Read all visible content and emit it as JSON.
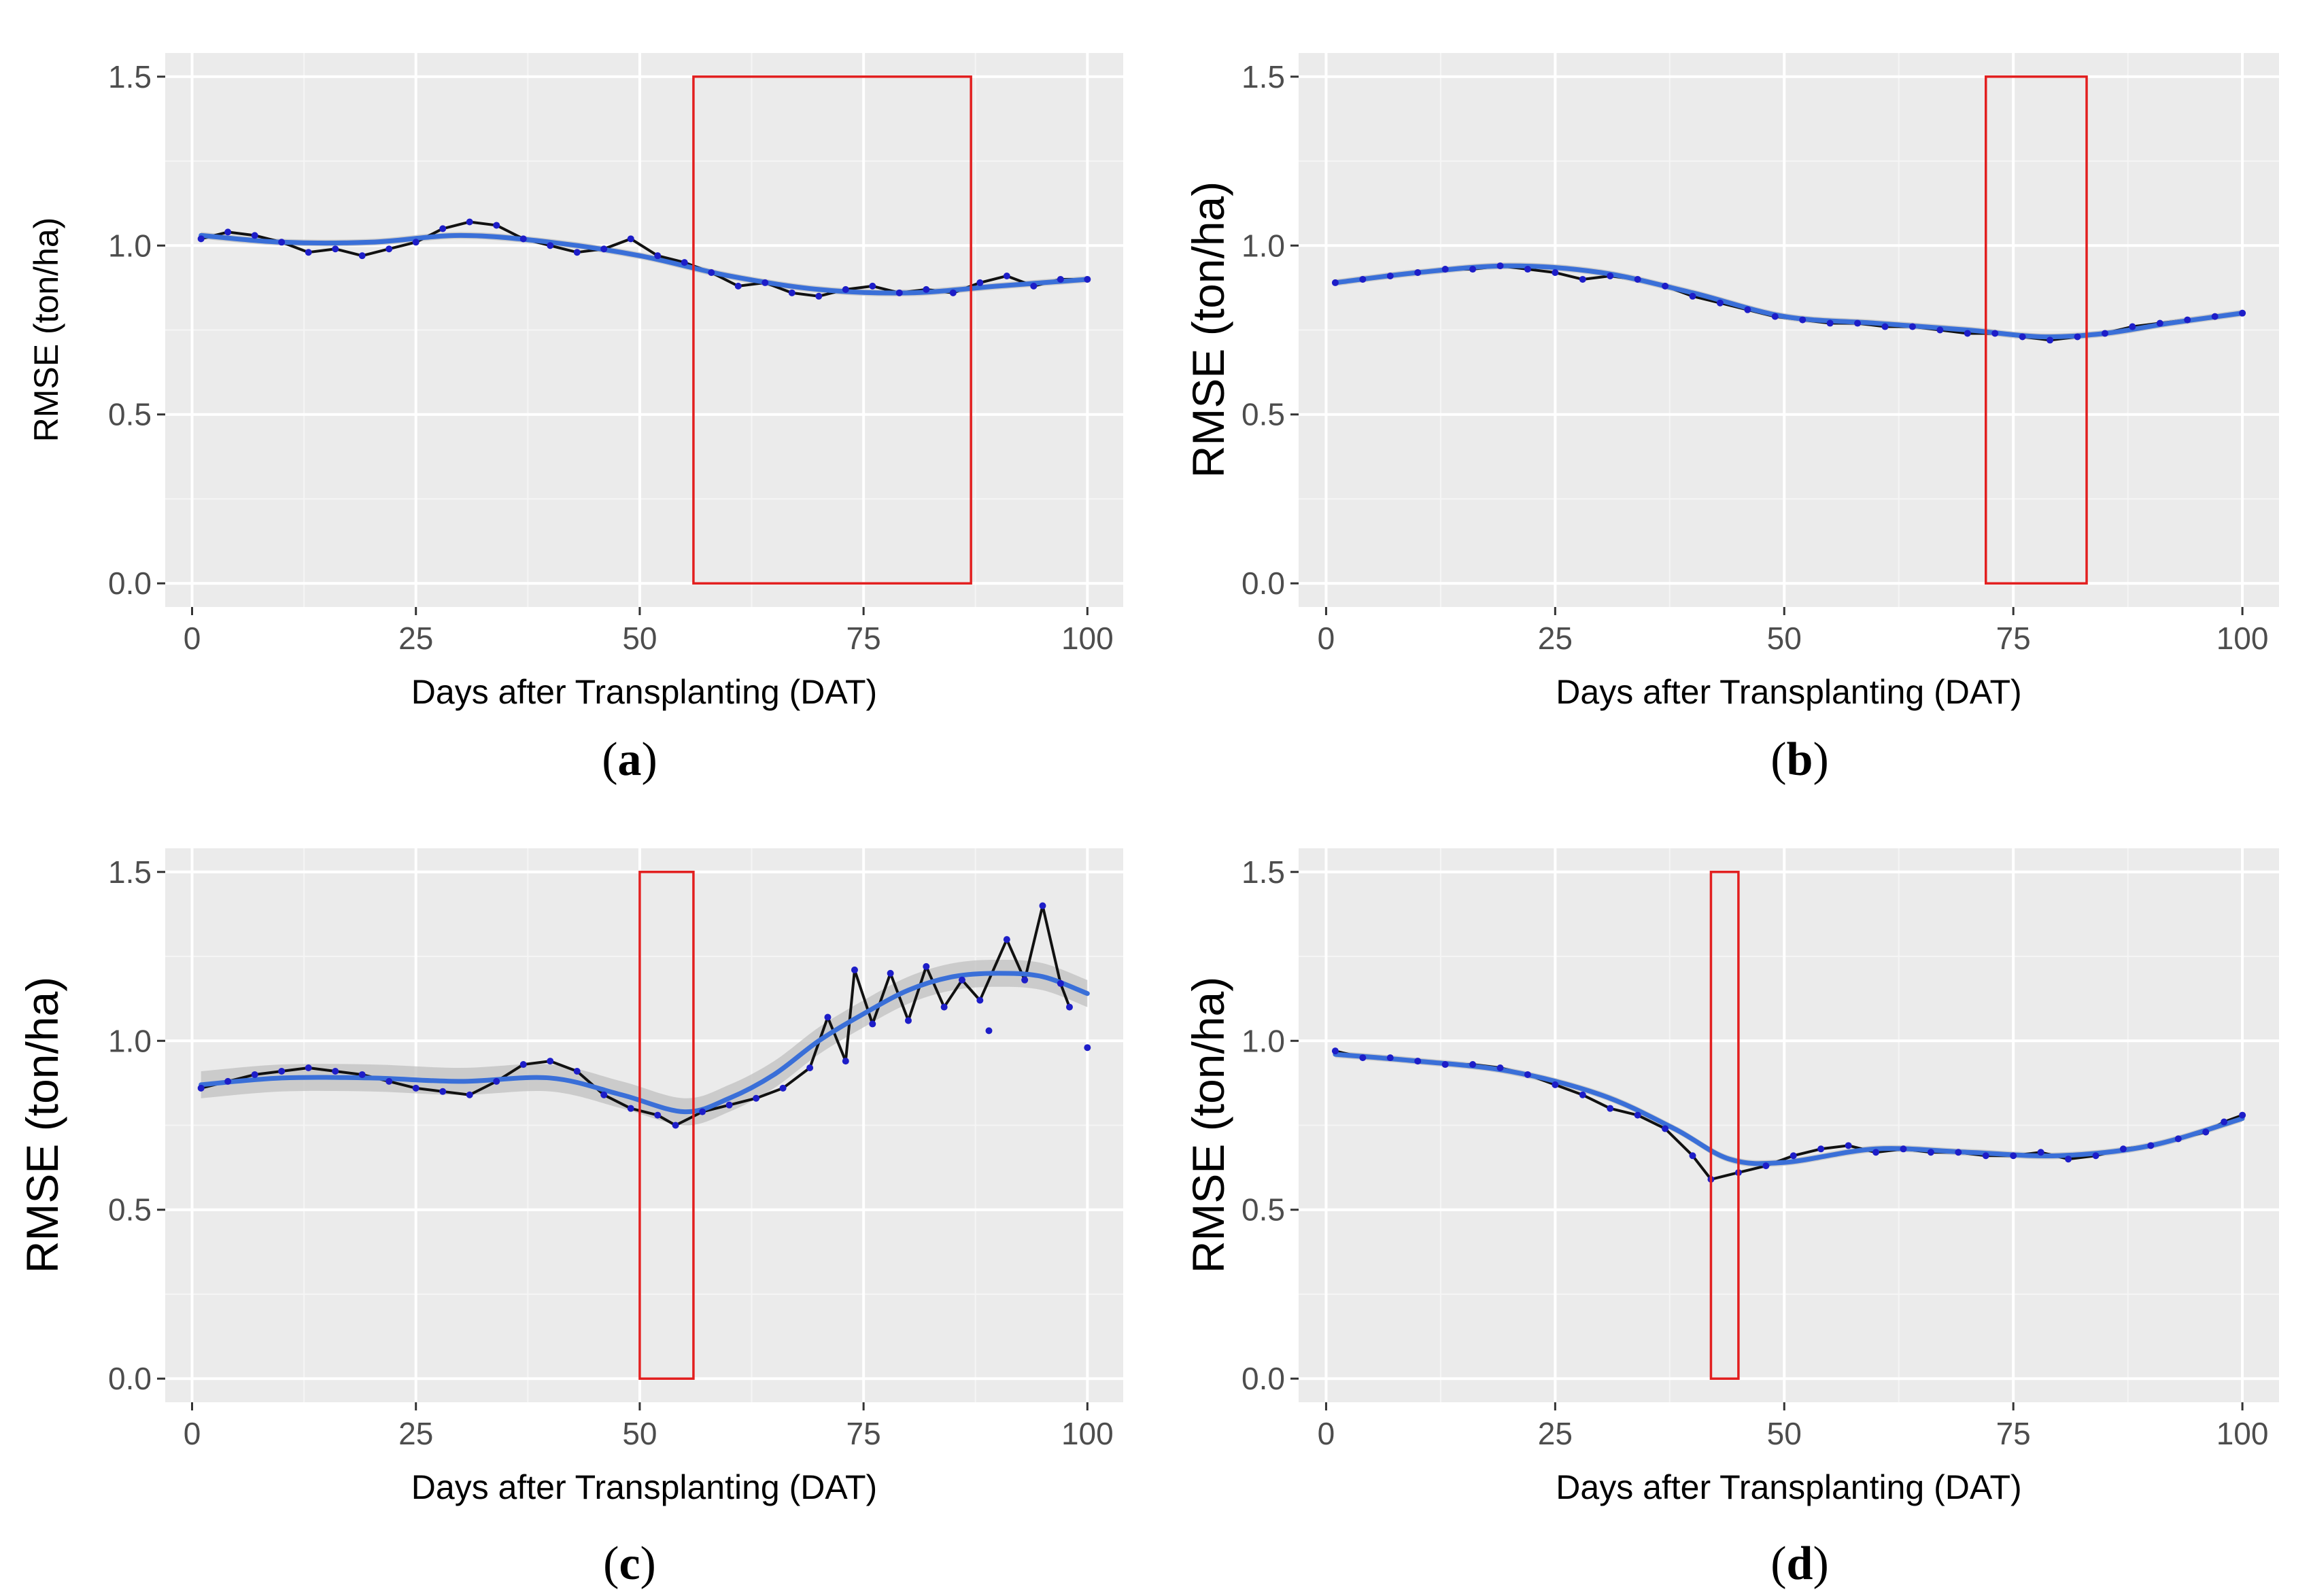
{
  "chart_data": [
    {
      "id": "a",
      "type": "line",
      "caption_letter": "a",
      "xlabel": "Days after Transplanting (DAT)",
      "ylabel": "RMSE (ton/ha)",
      "ylabel_size": "small",
      "xlim": [
        -3,
        104
      ],
      "ylim": [
        -0.07,
        1.57
      ],
      "xticks": [
        "0",
        "25",
        "50",
        "75",
        "100"
      ],
      "yticks": [
        "0.0",
        "0.5",
        "1.0",
        "1.5"
      ],
      "highlight_box": {
        "x": [
          56,
          87
        ],
        "y": [
          0,
          1.5
        ]
      },
      "points": [
        [
          1,
          1.02
        ],
        [
          4,
          1.04
        ],
        [
          7,
          1.03
        ],
        [
          10,
          1.01
        ],
        [
          13,
          0.98
        ],
        [
          16,
          0.99
        ],
        [
          19,
          0.97
        ],
        [
          22,
          0.99
        ],
        [
          25,
          1.01
        ],
        [
          28,
          1.05
        ],
        [
          31,
          1.07
        ],
        [
          34,
          1.06
        ],
        [
          37,
          1.02
        ],
        [
          40,
          1.0
        ],
        [
          43,
          0.98
        ],
        [
          46,
          0.99
        ],
        [
          49,
          1.02
        ],
        [
          52,
          0.97
        ],
        [
          55,
          0.95
        ],
        [
          58,
          0.92
        ],
        [
          61,
          0.88
        ],
        [
          64,
          0.89
        ],
        [
          67,
          0.86
        ],
        [
          70,
          0.85
        ],
        [
          73,
          0.87
        ],
        [
          76,
          0.88
        ],
        [
          79,
          0.86
        ],
        [
          82,
          0.87
        ],
        [
          85,
          0.86
        ],
        [
          88,
          0.89
        ],
        [
          91,
          0.91
        ],
        [
          94,
          0.88
        ],
        [
          97,
          0.9
        ],
        [
          100,
          0.9
        ]
      ],
      "smooth": [
        [
          1,
          1.03
        ],
        [
          10,
          1.01
        ],
        [
          20,
          1.01
        ],
        [
          30,
          1.03
        ],
        [
          40,
          1.01
        ],
        [
          50,
          0.97
        ],
        [
          60,
          0.91
        ],
        [
          70,
          0.87
        ],
        [
          80,
          0.86
        ],
        [
          90,
          0.88
        ],
        [
          100,
          0.9
        ]
      ],
      "band": 0.01
    },
    {
      "id": "b",
      "type": "line",
      "caption_letter": "b",
      "xlabel": "Days after Transplanting (DAT)",
      "ylabel": "RMSE (ton/ha)",
      "ylabel_size": "big",
      "xlim": [
        -3,
        104
      ],
      "ylim": [
        -0.07,
        1.57
      ],
      "xticks": [
        "0",
        "25",
        "50",
        "75",
        "100"
      ],
      "yticks": [
        "0.0",
        "0.5",
        "1.0",
        "1.5"
      ],
      "highlight_box": {
        "x": [
          72,
          83
        ],
        "y": [
          0,
          1.5
        ]
      },
      "points": [
        [
          1,
          0.89
        ],
        [
          4,
          0.9
        ],
        [
          7,
          0.91
        ],
        [
          10,
          0.92
        ],
        [
          13,
          0.93
        ],
        [
          16,
          0.93
        ],
        [
          19,
          0.94
        ],
        [
          22,
          0.93
        ],
        [
          25,
          0.92
        ],
        [
          28,
          0.9
        ],
        [
          31,
          0.91
        ],
        [
          34,
          0.9
        ],
        [
          37,
          0.88
        ],
        [
          40,
          0.85
        ],
        [
          43,
          0.83
        ],
        [
          46,
          0.81
        ],
        [
          49,
          0.79
        ],
        [
          52,
          0.78
        ],
        [
          55,
          0.77
        ],
        [
          58,
          0.77
        ],
        [
          61,
          0.76
        ],
        [
          64,
          0.76
        ],
        [
          67,
          0.75
        ],
        [
          70,
          0.74
        ],
        [
          73,
          0.74
        ],
        [
          76,
          0.73
        ],
        [
          79,
          0.72
        ],
        [
          82,
          0.73
        ],
        [
          85,
          0.74
        ],
        [
          88,
          0.76
        ],
        [
          91,
          0.77
        ],
        [
          94,
          0.78
        ],
        [
          97,
          0.79
        ],
        [
          100,
          0.8
        ]
      ],
      "smooth": [
        [
          1,
          0.89
        ],
        [
          10,
          0.92
        ],
        [
          20,
          0.94
        ],
        [
          30,
          0.92
        ],
        [
          40,
          0.86
        ],
        [
          50,
          0.79
        ],
        [
          60,
          0.77
        ],
        [
          70,
          0.75
        ],
        [
          78,
          0.73
        ],
        [
          85,
          0.74
        ],
        [
          92,
          0.77
        ],
        [
          100,
          0.8
        ]
      ],
      "band": 0.01
    },
    {
      "id": "c",
      "type": "line",
      "caption_letter": "c",
      "xlabel": "Days after Transplanting (DAT)",
      "ylabel": "RMSE (ton/ha)",
      "ylabel_size": "big",
      "xlim": [
        -3,
        104
      ],
      "ylim": [
        -0.07,
        1.57
      ],
      "xticks": [
        "0",
        "25",
        "50",
        "75",
        "100"
      ],
      "yticks": [
        "0.0",
        "0.5",
        "1.0",
        "1.5"
      ],
      "highlight_box": {
        "x": [
          50,
          56
        ],
        "y": [
          0,
          1.5
        ]
      },
      "points": [
        [
          1,
          0.86
        ],
        [
          4,
          0.88
        ],
        [
          7,
          0.9
        ],
        [
          10,
          0.91
        ],
        [
          13,
          0.92
        ],
        [
          16,
          0.91
        ],
        [
          19,
          0.9
        ],
        [
          22,
          0.88
        ],
        [
          25,
          0.86
        ],
        [
          28,
          0.85
        ],
        [
          31,
          0.84
        ],
        [
          34,
          0.88
        ],
        [
          37,
          0.93
        ],
        [
          40,
          0.94
        ],
        [
          43,
          0.91
        ],
        [
          46,
          0.84
        ],
        [
          49,
          0.8
        ],
        [
          52,
          0.78
        ],
        [
          54,
          0.75
        ],
        [
          57,
          0.79
        ],
        [
          60,
          0.81
        ],
        [
          63,
          0.83
        ],
        [
          66,
          0.86
        ],
        [
          69,
          0.92
        ],
        [
          71,
          1.07
        ],
        [
          73,
          0.94
        ],
        [
          74,
          1.21
        ],
        [
          76,
          1.05
        ],
        [
          78,
          1.2
        ],
        [
          80,
          1.06
        ],
        [
          82,
          1.22
        ],
        [
          84,
          1.1
        ],
        [
          86,
          1.18
        ],
        [
          88,
          1.12
        ],
        [
          91,
          1.3
        ],
        [
          93,
          1.18
        ],
        [
          95,
          1.4
        ],
        [
          97,
          1.17
        ],
        [
          98,
          1.1
        ]
      ],
      "outliers": [
        [
          89,
          1.03
        ],
        [
          100,
          0.98
        ]
      ],
      "smooth": [
        [
          1,
          0.87
        ],
        [
          10,
          0.89
        ],
        [
          20,
          0.89
        ],
        [
          30,
          0.88
        ],
        [
          40,
          0.89
        ],
        [
          48,
          0.84
        ],
        [
          55,
          0.79
        ],
        [
          60,
          0.83
        ],
        [
          65,
          0.9
        ],
        [
          70,
          1.0
        ],
        [
          75,
          1.08
        ],
        [
          80,
          1.15
        ],
        [
          85,
          1.19
        ],
        [
          90,
          1.2
        ],
        [
          95,
          1.19
        ],
        [
          100,
          1.14
        ]
      ],
      "band": 0.04
    },
    {
      "id": "d",
      "type": "line",
      "caption_letter": "d",
      "xlabel": "Days after Transplanting (DAT)",
      "ylabel": "RMSE (ton/ha)",
      "ylabel_size": "big",
      "xlim": [
        -3,
        104
      ],
      "ylim": [
        -0.07,
        1.57
      ],
      "xticks": [
        "0",
        "25",
        "50",
        "75",
        "100"
      ],
      "yticks": [
        "0.0",
        "0.5",
        "1.0",
        "1.5"
      ],
      "highlight_box": {
        "x": [
          42,
          45
        ],
        "y": [
          0,
          1.5
        ]
      },
      "points": [
        [
          1,
          0.97
        ],
        [
          4,
          0.95
        ],
        [
          7,
          0.95
        ],
        [
          10,
          0.94
        ],
        [
          13,
          0.93
        ],
        [
          16,
          0.93
        ],
        [
          19,
          0.92
        ],
        [
          22,
          0.9
        ],
        [
          25,
          0.87
        ],
        [
          28,
          0.84
        ],
        [
          31,
          0.8
        ],
        [
          34,
          0.78
        ],
        [
          37,
          0.74
        ],
        [
          40,
          0.66
        ],
        [
          42,
          0.59
        ],
        [
          45,
          0.61
        ],
        [
          48,
          0.63
        ],
        [
          51,
          0.66
        ],
        [
          54,
          0.68
        ],
        [
          57,
          0.69
        ],
        [
          60,
          0.67
        ],
        [
          63,
          0.68
        ],
        [
          66,
          0.67
        ],
        [
          69,
          0.67
        ],
        [
          72,
          0.66
        ],
        [
          75,
          0.66
        ],
        [
          78,
          0.67
        ],
        [
          81,
          0.65
        ],
        [
          84,
          0.66
        ],
        [
          87,
          0.68
        ],
        [
          90,
          0.69
        ],
        [
          93,
          0.71
        ],
        [
          96,
          0.73
        ],
        [
          98,
          0.76
        ],
        [
          100,
          0.78
        ]
      ],
      "smooth": [
        [
          1,
          0.96
        ],
        [
          10,
          0.94
        ],
        [
          20,
          0.91
        ],
        [
          30,
          0.84
        ],
        [
          38,
          0.74
        ],
        [
          44,
          0.65
        ],
        [
          50,
          0.64
        ],
        [
          60,
          0.68
        ],
        [
          70,
          0.67
        ],
        [
          80,
          0.66
        ],
        [
          90,
          0.69
        ],
        [
          100,
          0.77
        ]
      ],
      "band": 0.01
    }
  ]
}
